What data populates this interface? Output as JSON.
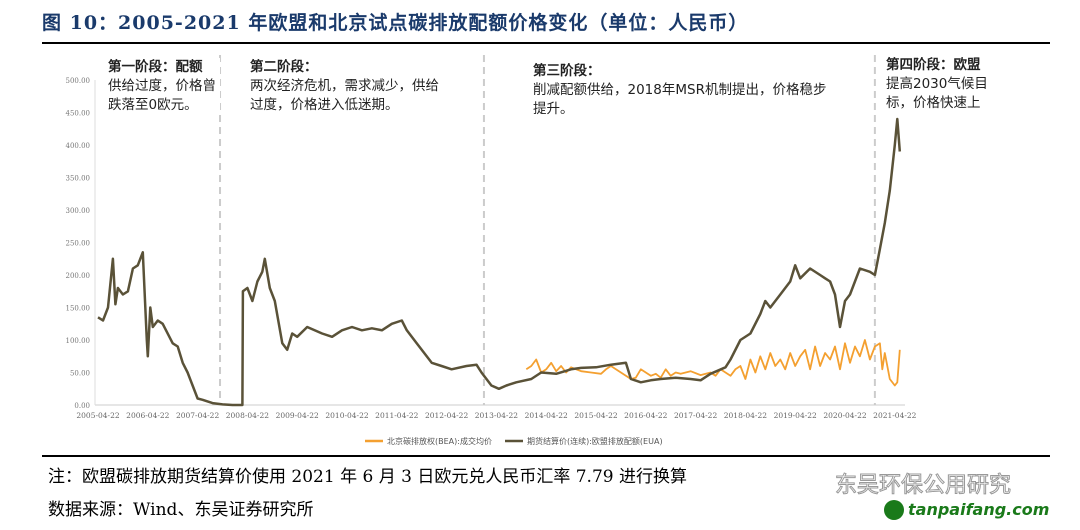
{
  "title": "图 10：2005-2021 年欧盟和北京试点碳排放配额价格变化（单位：人民币）",
  "note": "注：欧盟碳排放期货结算价使用 2021 年 6 月 3 日欧元兑人民币汇率 7.79 进行换算",
  "source": "数据来源：Wind、东吴证券研究所",
  "watermark": {
    "text": "东吴环保公用研究",
    "site": "tanpaifang.com"
  },
  "annotations": [
    {
      "head": "第一阶段：配额",
      "body": "供给过度，价格曾跌落至0欧元。"
    },
    {
      "head": "第二阶段：",
      "body": "两次经济危机，需求减少，供给过度，价格进入低迷期。"
    },
    {
      "head": "第三阶段：",
      "body": "削减配额供给，2018年MSR机制提出，价格稳步提升。"
    },
    {
      "head": "第四阶段：欧盟",
      "body": "提高2030气候目标，价格快速上"
    }
  ],
  "chart_data": {
    "type": "line",
    "title": "2005-2021 年欧盟和北京试点碳排放配额价格变化",
    "ylabel": "人民币",
    "xlabel": "",
    "ylim": [
      0,
      500
    ],
    "xlim": [
      2005.3,
      2021.6
    ],
    "yticks": [
      "0.00",
      "50.00",
      "100.00",
      "150.00",
      "200.00",
      "250.00",
      "300.00",
      "350.00",
      "400.00",
      "450.00",
      "500.00"
    ],
    "xticks": [
      "2005-04-22",
      "2006-04-22",
      "2007-04-22",
      "2008-04-22",
      "2009-04-22",
      "2010-04-22",
      "2011-04-22",
      "2012-04-22",
      "2013-04-22",
      "2014-04-22",
      "2015-04-22",
      "2016-04-22",
      "2017-04-22",
      "2018-04-22",
      "2019-04-22",
      "2020-04-22",
      "2021-04-22"
    ],
    "stage_dividers": [
      2007.75,
      2013.05,
      2020.9
    ],
    "legend_position": "bottom",
    "series": [
      {
        "name": "北京碳排放权(BEA):成交均价",
        "color": "#f4a030",
        "x": [
          2013.9,
          2014.0,
          2014.1,
          2014.2,
          2014.3,
          2014.4,
          2014.5,
          2014.6,
          2014.7,
          2014.8,
          2014.9,
          2015.0,
          2015.2,
          2015.4,
          2015.5,
          2015.6,
          2015.8,
          2015.9,
          2016.0,
          2016.1,
          2016.2,
          2016.3,
          2016.4,
          2016.5,
          2016.6,
          2016.7,
          2016.8,
          2016.9,
          2017.0,
          2017.2,
          2017.4,
          2017.6,
          2017.7,
          2017.8,
          2017.9,
          2018.0,
          2018.1,
          2018.2,
          2018.3,
          2018.4,
          2018.5,
          2018.6,
          2018.7,
          2018.8,
          2018.9,
          2019.0,
          2019.1,
          2019.2,
          2019.3,
          2019.4,
          2019.5,
          2019.6,
          2019.7,
          2019.8,
          2019.9,
          2020.0,
          2020.1,
          2020.2,
          2020.3,
          2020.4,
          2020.5,
          2020.6,
          2020.7,
          2020.8,
          2020.9,
          2021.0,
          2021.05,
          2021.1,
          2021.2,
          2021.3,
          2021.35,
          2021.4
        ],
        "values": [
          55,
          60,
          70,
          50,
          55,
          65,
          52,
          60,
          50,
          58,
          55,
          52,
          50,
          48,
          55,
          60,
          50,
          45,
          40,
          42,
          55,
          50,
          45,
          48,
          42,
          55,
          45,
          50,
          48,
          52,
          46,
          50,
          45,
          55,
          50,
          45,
          55,
          60,
          40,
          70,
          50,
          75,
          55,
          80,
          60,
          70,
          55,
          80,
          60,
          75,
          85,
          55,
          90,
          60,
          80,
          70,
          90,
          55,
          95,
          65,
          90,
          75,
          100,
          70,
          90,
          95,
          55,
          80,
          40,
          30,
          35,
          85
        ]
      },
      {
        "name": "期货结算价(连续):欧盟排放配额(EUA)",
        "color": "#5a5238",
        "x": [
          2005.3,
          2005.4,
          2005.5,
          2005.6,
          2005.65,
          2005.7,
          2005.8,
          2005.9,
          2006.0,
          2006.1,
          2006.2,
          2006.28,
          2006.3,
          2006.35,
          2006.4,
          2006.5,
          2006.6,
          2006.8,
          2006.9,
          2007.0,
          2007.1,
          2007.2,
          2007.3,
          2007.4,
          2007.6,
          2007.8,
          2008.0,
          2008.2,
          2008.21,
          2008.3,
          2008.4,
          2008.5,
          2008.6,
          2008.65,
          2008.75,
          2008.85,
          2009.0,
          2009.1,
          2009.2,
          2009.3,
          2009.5,
          2009.8,
          2010.0,
          2010.2,
          2010.4,
          2010.6,
          2010.8,
          2011.0,
          2011.2,
          2011.4,
          2011.5,
          2011.7,
          2011.9,
          2012.0,
          2012.2,
          2012.4,
          2012.7,
          2012.9,
          2013.0,
          2013.2,
          2013.35,
          2013.5,
          2013.7,
          2014.0,
          2014.2,
          2014.5,
          2014.8,
          2015.0,
          2015.3,
          2015.6,
          2015.9,
          2016.0,
          2016.2,
          2016.4,
          2016.6,
          2016.9,
          2017.2,
          2017.4,
          2017.6,
          2017.9,
          2018.0,
          2018.2,
          2018.4,
          2018.6,
          2018.7,
          2018.8,
          2019.0,
          2019.2,
          2019.3,
          2019.4,
          2019.6,
          2019.8,
          2019.9,
          2020.0,
          2020.1,
          2020.2,
          2020.3,
          2020.4,
          2020.6,
          2020.8,
          2020.9,
          2021.0,
          2021.1,
          2021.2,
          2021.3,
          2021.35,
          2021.4
        ],
        "values": [
          135,
          130,
          150,
          225,
          155,
          180,
          170,
          175,
          210,
          215,
          235,
          100,
          75,
          150,
          120,
          130,
          125,
          95,
          90,
          65,
          50,
          30,
          10,
          8,
          3,
          1,
          0,
          0,
          175,
          180,
          160,
          190,
          205,
          225,
          180,
          160,
          95,
          85,
          110,
          105,
          120,
          110,
          105,
          115,
          120,
          115,
          118,
          115,
          125,
          130,
          115,
          95,
          75,
          65,
          60,
          55,
          60,
          62,
          50,
          30,
          25,
          30,
          35,
          40,
          50,
          48,
          55,
          57,
          58,
          62,
          65,
          40,
          35,
          38,
          40,
          42,
          40,
          38,
          48,
          58,
          70,
          100,
          110,
          140,
          160,
          150,
          170,
          190,
          215,
          195,
          210,
          200,
          195,
          190,
          170,
          120,
          160,
          170,
          210,
          205,
          200,
          240,
          280,
          330,
          400,
          440,
          390
        ]
      }
    ]
  }
}
